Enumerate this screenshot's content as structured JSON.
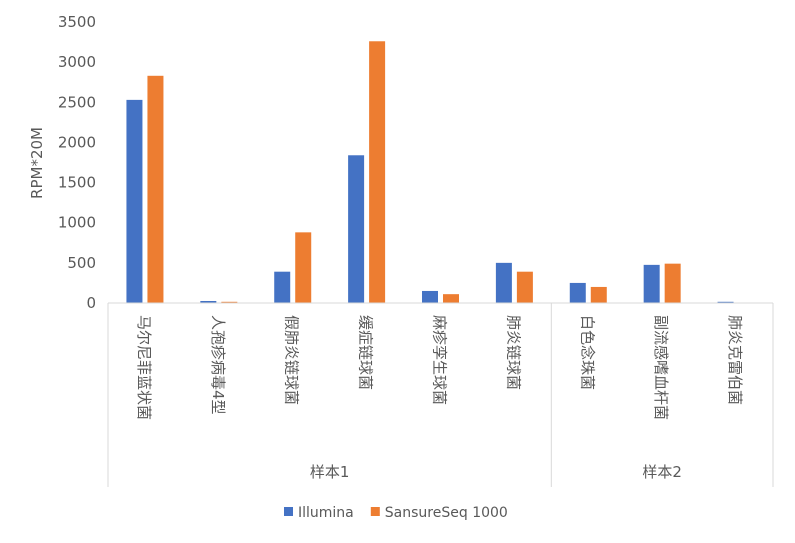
{
  "chart_data": {
    "type": "bar",
    "ylabel": "RPM*20M",
    "ylim": [
      0,
      3500
    ],
    "yticks": [
      0,
      500,
      1000,
      1500,
      2000,
      2500,
      3000,
      3500
    ],
    "grid": false,
    "legend_position": "bottom",
    "categories": [
      "马尔尼菲蓝状菌",
      "人孢疹病毒4型",
      "假肺炎链球菌",
      "缓症链球菌",
      "麻疹孪生球菌",
      "肺炎链球菌",
      "白色念珠菌",
      "副流感嗜血杆菌",
      "肺炎克雷伯菌"
    ],
    "groups": [
      {
        "label": "样本1",
        "categories": [
          "马尔尼菲蓝状菌",
          "人孢疹病毒4型",
          "假肺炎链球菌",
          "缓症链球菌",
          "麻疹孪生球菌",
          "肺炎链球菌"
        ]
      },
      {
        "label": "样本2",
        "categories": [
          "白色念珠菌",
          "副流感嗜血杆菌",
          "肺炎克雷伯菌"
        ]
      }
    ],
    "series": [
      {
        "name": "Illumina",
        "color": "#4472C4",
        "values": [
          2530,
          25,
          390,
          1840,
          150,
          500,
          250,
          475,
          15
        ]
      },
      {
        "name": "SansureSeq 1000",
        "color": "#ED7D31",
        "values": [
          2830,
          15,
          880,
          3260,
          110,
          390,
          200,
          490,
          0
        ]
      }
    ]
  }
}
